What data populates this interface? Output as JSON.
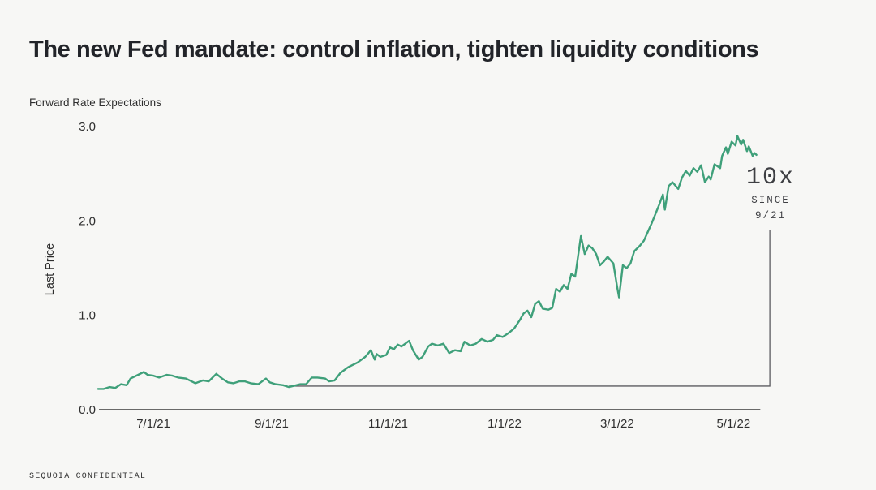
{
  "page": {
    "background": "#f7f7f5"
  },
  "header": {
    "title": "The new Fed mandate: control inflation, tighten liquidity conditions"
  },
  "footer": {
    "confidential": "SEQUOIA CONFIDENTIAL"
  },
  "chart_data": {
    "type": "line",
    "title": "Forward Rate Expectations",
    "xlabel": "",
    "ylabel": "Last Price",
    "line_color": "#3fa07a",
    "axis_color": "#3b3b3b",
    "bracket_color": "#5c5c60",
    "grid": "off",
    "legend": "none",
    "ylim": [
      0.0,
      3.0
    ],
    "yticks": [
      {
        "value": 0.0,
        "label": "0.0"
      },
      {
        "value": 1.0,
        "label": "1.0"
      },
      {
        "value": 2.0,
        "label": "2.0"
      },
      {
        "value": 3.0,
        "label": "3.0"
      }
    ],
    "x_unit": "days since 6/1/21",
    "xlim": [
      0,
      353
    ],
    "xticks": [
      {
        "day": 30,
        "label": "7/1/21"
      },
      {
        "day": 92,
        "label": "9/1/21"
      },
      {
        "day": 153,
        "label": "11/1/21"
      },
      {
        "day": 214,
        "label": "1/1/22"
      },
      {
        "day": 273,
        "label": "3/1/22"
      },
      {
        "day": 334,
        "label": "5/1/22"
      }
    ],
    "annotation": {
      "headline": "10x",
      "line1": "SINCE",
      "line2": "9/21",
      "bracket": {
        "start_day": 101,
        "level": 0.25,
        "corner_day": 353,
        "top_value": 1.9
      }
    },
    "series": [
      {
        "name": "Forward Rate Expectations",
        "points": [
          [
            1,
            0.22
          ],
          [
            4,
            0.22
          ],
          [
            7,
            0.24
          ],
          [
            10,
            0.23
          ],
          [
            13,
            0.27
          ],
          [
            16,
            0.26
          ],
          [
            18,
            0.33
          ],
          [
            22,
            0.37
          ],
          [
            25,
            0.4
          ],
          [
            27,
            0.37
          ],
          [
            30,
            0.36
          ],
          [
            33,
            0.34
          ],
          [
            37,
            0.37
          ],
          [
            40,
            0.36
          ],
          [
            43,
            0.34
          ],
          [
            47,
            0.33
          ],
          [
            50,
            0.3
          ],
          [
            52,
            0.28
          ],
          [
            56,
            0.31
          ],
          [
            59,
            0.3
          ],
          [
            63,
            0.38
          ],
          [
            66,
            0.33
          ],
          [
            69,
            0.29
          ],
          [
            72,
            0.28
          ],
          [
            75,
            0.3
          ],
          [
            78,
            0.3
          ],
          [
            81,
            0.28
          ],
          [
            85,
            0.27
          ],
          [
            89,
            0.33
          ],
          [
            91,
            0.29
          ],
          [
            94,
            0.27
          ],
          [
            98,
            0.26
          ],
          [
            101,
            0.24
          ],
          [
            103,
            0.25
          ],
          [
            107,
            0.27
          ],
          [
            110,
            0.27
          ],
          [
            113,
            0.34
          ],
          [
            116,
            0.34
          ],
          [
            120,
            0.33
          ],
          [
            122,
            0.3
          ],
          [
            125,
            0.31
          ],
          [
            128,
            0.39
          ],
          [
            132,
            0.45
          ],
          [
            137,
            0.5
          ],
          [
            141,
            0.56
          ],
          [
            144,
            0.63
          ],
          [
            146,
            0.53
          ],
          [
            147,
            0.59
          ],
          [
            149,
            0.56
          ],
          [
            152,
            0.58
          ],
          [
            154,
            0.66
          ],
          [
            156,
            0.64
          ],
          [
            158,
            0.69
          ],
          [
            160,
            0.67
          ],
          [
            162,
            0.7
          ],
          [
            164,
            0.73
          ],
          [
            166,
            0.63
          ],
          [
            169,
            0.53
          ],
          [
            171,
            0.56
          ],
          [
            174,
            0.67
          ],
          [
            176,
            0.7
          ],
          [
            179,
            0.68
          ],
          [
            182,
            0.7
          ],
          [
            185,
            0.6
          ],
          [
            188,
            0.63
          ],
          [
            191,
            0.62
          ],
          [
            193,
            0.72
          ],
          [
            196,
            0.68
          ],
          [
            199,
            0.7
          ],
          [
            202,
            0.75
          ],
          [
            205,
            0.72
          ],
          [
            208,
            0.74
          ],
          [
            210,
            0.79
          ],
          [
            213,
            0.77
          ],
          [
            216,
            0.81
          ],
          [
            219,
            0.86
          ],
          [
            222,
            0.95
          ],
          [
            224,
            1.02
          ],
          [
            226,
            1.05
          ],
          [
            228,
            0.98
          ],
          [
            230,
            1.12
          ],
          [
            232,
            1.15
          ],
          [
            234,
            1.07
          ],
          [
            237,
            1.06
          ],
          [
            239,
            1.08
          ],
          [
            241,
            1.28
          ],
          [
            243,
            1.25
          ],
          [
            245,
            1.32
          ],
          [
            247,
            1.28
          ],
          [
            249,
            1.44
          ],
          [
            251,
            1.41
          ],
          [
            254,
            1.84
          ],
          [
            256,
            1.65
          ],
          [
            258,
            1.74
          ],
          [
            260,
            1.71
          ],
          [
            262,
            1.65
          ],
          [
            264,
            1.53
          ],
          [
            266,
            1.57
          ],
          [
            268,
            1.62
          ],
          [
            271,
            1.55
          ],
          [
            273,
            1.3
          ],
          [
            274,
            1.19
          ],
          [
            276,
            1.53
          ],
          [
            278,
            1.5
          ],
          [
            280,
            1.55
          ],
          [
            282,
            1.68
          ],
          [
            285,
            1.74
          ],
          [
            287,
            1.79
          ],
          [
            289,
            1.88
          ],
          [
            291,
            1.97
          ],
          [
            293,
            2.07
          ],
          [
            295,
            2.17
          ],
          [
            297,
            2.28
          ],
          [
            298,
            2.12
          ],
          [
            300,
            2.37
          ],
          [
            302,
            2.41
          ],
          [
            305,
            2.34
          ],
          [
            307,
            2.46
          ],
          [
            309,
            2.53
          ],
          [
            311,
            2.48
          ],
          [
            313,
            2.56
          ],
          [
            315,
            2.52
          ],
          [
            317,
            2.59
          ],
          [
            319,
            2.41
          ],
          [
            321,
            2.47
          ],
          [
            322,
            2.44
          ],
          [
            324,
            2.6
          ],
          [
            327,
            2.56
          ],
          [
            328,
            2.69
          ],
          [
            330,
            2.78
          ],
          [
            331,
            2.71
          ],
          [
            333,
            2.84
          ],
          [
            335,
            2.8
          ],
          [
            336,
            2.9
          ],
          [
            338,
            2.81
          ],
          [
            339,
            2.86
          ],
          [
            341,
            2.74
          ],
          [
            342,
            2.79
          ],
          [
            344,
            2.69
          ],
          [
            345,
            2.72
          ],
          [
            346,
            2.7
          ]
        ]
      }
    ]
  }
}
